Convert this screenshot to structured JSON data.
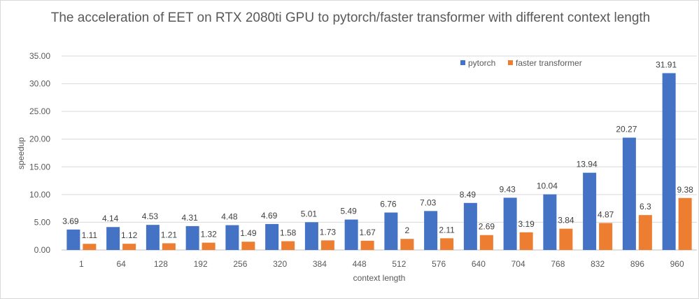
{
  "chart_data": {
    "type": "bar",
    "title": "The acceleration of EET on RTX 2080ti GPU to pytorch/faster transformer with different context length",
    "xlabel": "context length",
    "ylabel": "speedup",
    "ylim": [
      0,
      35
    ],
    "yticks": [
      "0.00",
      "5.00",
      "10.00",
      "15.00",
      "20.00",
      "25.00",
      "30.00",
      "35.00"
    ],
    "grid": true,
    "legend_position": "top-right",
    "categories": [
      "1",
      "64",
      "128",
      "192",
      "256",
      "320",
      "384",
      "448",
      "512",
      "576",
      "640",
      "704",
      "768",
      "832",
      "896",
      "960"
    ],
    "series": [
      {
        "name": "pytorch",
        "color": "#4472c4",
        "values": [
          3.69,
          4.14,
          4.53,
          4.31,
          4.48,
          4.69,
          5.01,
          5.49,
          6.76,
          7.03,
          8.49,
          9.43,
          10.04,
          13.94,
          20.27,
          31.91
        ]
      },
      {
        "name": "faster transformer",
        "color": "#ed7d31",
        "values": [
          1.11,
          1.12,
          1.21,
          1.32,
          1.49,
          1.58,
          1.73,
          1.67,
          2,
          2.11,
          2.69,
          3.19,
          3.84,
          4.87,
          6.3,
          9.38
        ]
      }
    ]
  }
}
